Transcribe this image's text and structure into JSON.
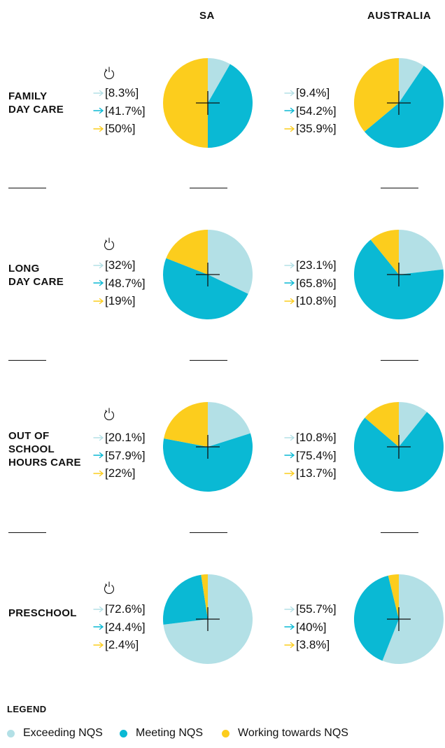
{
  "colors": {
    "exceeding": "#b3e0e6",
    "meeting": "#0ab9d4",
    "working": "#fccd1d"
  },
  "column_headers": [
    "SA",
    "AUSTRALIA"
  ],
  "legend": {
    "title": "LEGEND",
    "items": [
      "Exceeding NQS",
      "Meeting NQS",
      "Working towards NQS"
    ]
  },
  "chart_data": {
    "type": "pie",
    "series_order": [
      "Exceeding NQS",
      "Meeting NQS",
      "Working towards NQS"
    ],
    "rows": [
      {
        "label": "FAMILY\nDAY CARE",
        "sa": {
          "labels": [
            "[8.3%]",
            "[41.7%]",
            "[50%]"
          ],
          "values": [
            8.3,
            41.7,
            50
          ]
        },
        "australia": {
          "labels": [
            "[9.4%]",
            "[54.2%]",
            "[35.9%]"
          ],
          "values": [
            9.4,
            54.2,
            35.9
          ]
        }
      },
      {
        "label": "LONG\nDAY CARE",
        "sa": {
          "labels": [
            "[32%]",
            "[48.7%]",
            "[19%]"
          ],
          "values": [
            32,
            48.7,
            19
          ]
        },
        "australia": {
          "labels": [
            "[23.1%]",
            "[65.8%]",
            "[10.8%]"
          ],
          "values": [
            23.1,
            65.8,
            10.8
          ]
        }
      },
      {
        "label": "OUT OF\nSCHOOL\nHOURS CARE",
        "sa": {
          "labels": [
            "[20.1%]",
            "[57.9%]",
            "[22%]"
          ],
          "values": [
            20.1,
            57.9,
            22
          ]
        },
        "australia": {
          "labels": [
            "[10.8%]",
            "[75.4%]",
            "[13.7%]"
          ],
          "values": [
            10.8,
            75.4,
            13.7
          ]
        }
      },
      {
        "label": "PRESCHOOL",
        "sa": {
          "labels": [
            "[72.6%]",
            "[24.4%]",
            "[2.4%]"
          ],
          "values": [
            72.6,
            24.4,
            2.4
          ]
        },
        "australia": {
          "labels": [
            "[55.7%]",
            "[40%]",
            "[3.8%]"
          ],
          "values": [
            55.7,
            40,
            3.8
          ]
        }
      }
    ]
  }
}
